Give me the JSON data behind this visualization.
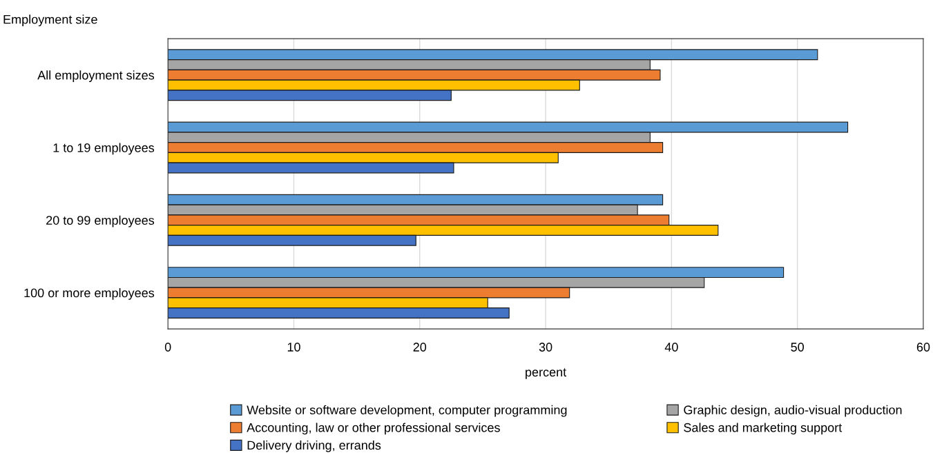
{
  "chart_data": {
    "type": "bar",
    "orientation": "horizontal",
    "ylabel": "Employment size",
    "xlabel": "percent",
    "categories": [
      "All employment sizes",
      "1 to 19 employees",
      "20 to 99 employees",
      "100 or more employees"
    ],
    "series": [
      {
        "name": "Website or software development, computer programming",
        "color": "#5b9bd5",
        "values": [
          51.6,
          54.0,
          39.3,
          48.9
        ]
      },
      {
        "name": "Graphic design, audio-visual production",
        "color": "#a5a5a5",
        "values": [
          38.3,
          38.3,
          37.3,
          42.6
        ]
      },
      {
        "name": "Accounting, law or other professional services",
        "color": "#ed7d31",
        "values": [
          39.1,
          39.3,
          39.8,
          31.9
        ]
      },
      {
        "name": "Sales and marketing support",
        "color": "#ffc000",
        "values": [
          32.7,
          31.0,
          43.7,
          25.4
        ]
      },
      {
        "name": "Delivery driving, errands",
        "color": "#4472c4",
        "values": [
          22.5,
          22.7,
          19.7,
          27.1
        ]
      }
    ],
    "xlim": [
      0,
      60
    ],
    "xticks": [
      0,
      10,
      20,
      30,
      40,
      50,
      60
    ],
    "grid": "x",
    "legend": "bottom"
  }
}
